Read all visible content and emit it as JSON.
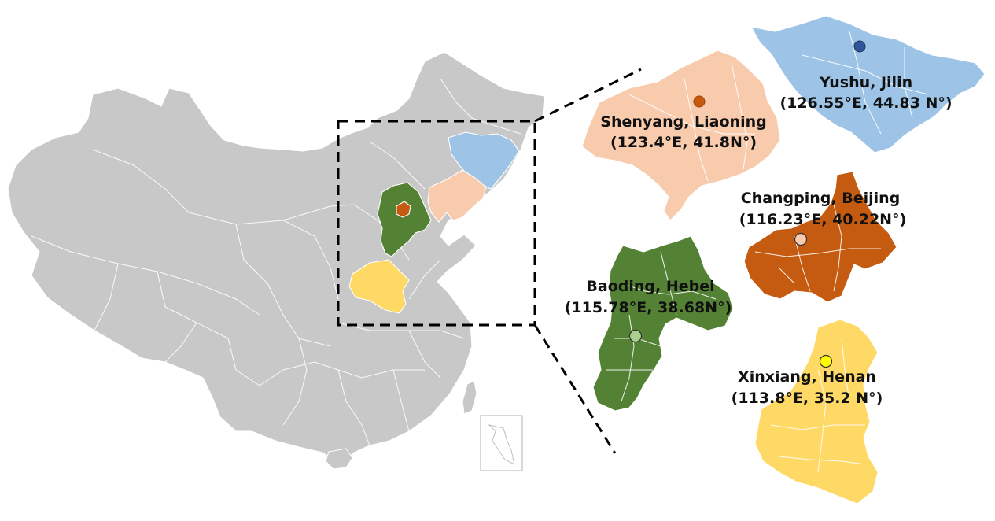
{
  "colors": {
    "china_base": "#c8c8c8",
    "jilin": "#9dc3e6",
    "liaoning": "#f8cbad",
    "beijing": "#c55a11",
    "hebei": "#548235",
    "henan": "#ffd966",
    "marker_jilin": "#2f5597",
    "marker_liaoning": "#c55a11",
    "marker_beijing": "#f8cbad",
    "marker_hebei": "#a9d18e",
    "marker_henan": "#ffff00"
  },
  "sites": [
    {
      "name": "Yushu, Jilin",
      "coords": "(126.55°E, 44.83 N°)"
    },
    {
      "name": "Shenyang, Liaoning",
      "coords": "(123.4°E, 41.8N°)"
    },
    {
      "name": "Changping, Beijing",
      "coords": "(116.23°E, 40.22N°)"
    },
    {
      "name": "Baoding, Hebei",
      "coords": "(115.78°E, 38.68N°)"
    },
    {
      "name": "Xinxiang, Henan",
      "coords": "(113.8°E, 35.2 N°)"
    }
  ]
}
